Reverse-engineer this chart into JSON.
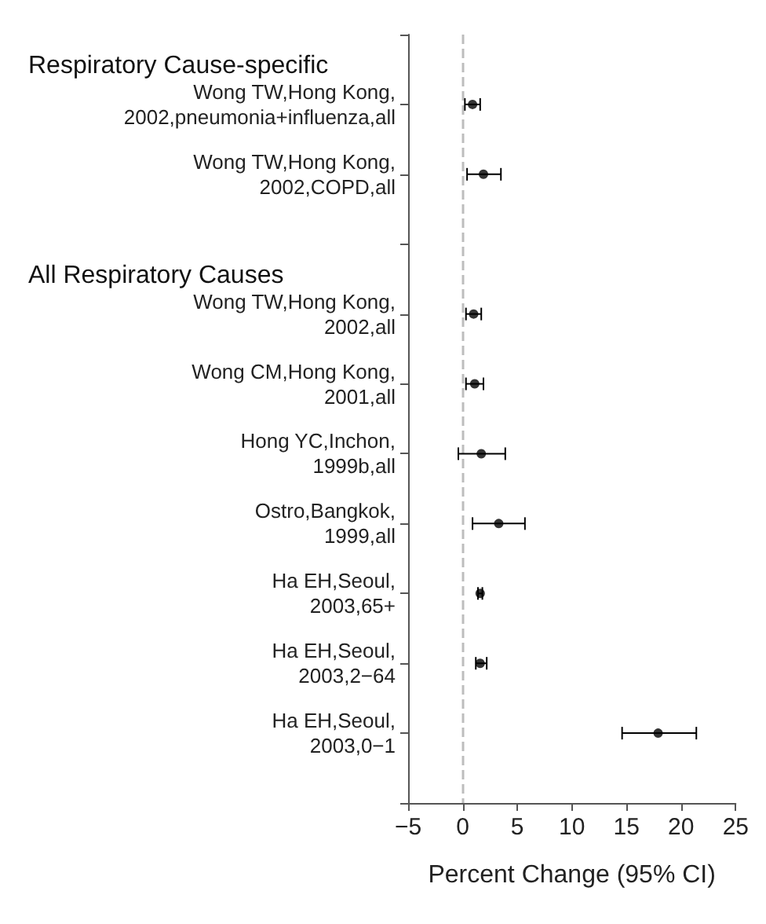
{
  "chart_data": {
    "type": "scatter",
    "orientation": "horizontal",
    "xlabel": "Percent Change (95% CI)",
    "annotations": [
      "Respiratory Cause-specific",
      "All Respiratory Causes"
    ],
    "categories": [
      null,
      "Wong TW,Hong Kong, 2002,pneumonia+influenza,all",
      "Wong TW,Hong Kong, 2002,COPD,all",
      null,
      "Wong TW,Hong Kong, 2002,all",
      "Wong CM,Hong Kong, 2001,all",
      "Hong YC,Inchon, 1999b,all",
      "Ostro,Bangkok, 1999,all",
      "Ha EH,Seoul, 2003,65+",
      "Ha EH,Seoul, 2003,2−64",
      "Ha EH,Seoul, 2003,0−1",
      null
    ],
    "values": [
      null,
      0.9,
      1.9,
      null,
      1.0,
      1.1,
      1.7,
      3.3,
      1.6,
      1.6,
      17.9,
      null
    ],
    "errors": [
      null,
      [
        0.2,
        1.6
      ],
      [
        0.4,
        3.5
      ],
      null,
      [
        0.3,
        1.7
      ],
      [
        0.3,
        1.9
      ],
      [
        -0.4,
        3.9
      ],
      [
        0.9,
        5.7
      ],
      [
        1.4,
        1.8
      ],
      [
        1.2,
        2.2
      ],
      [
        14.6,
        21.4
      ],
      null
    ],
    "color": "#000000",
    "marker": "circle",
    "grid": false,
    "xlim": [
      -5,
      25
    ],
    "xticks": [
      -5,
      0,
      5,
      10,
      15,
      20,
      25
    ],
    "ref_lines": [
      {
        "axis": "x",
        "value": 0,
        "color": "#bdbdbd",
        "line_style": "dashed"
      }
    ]
  }
}
